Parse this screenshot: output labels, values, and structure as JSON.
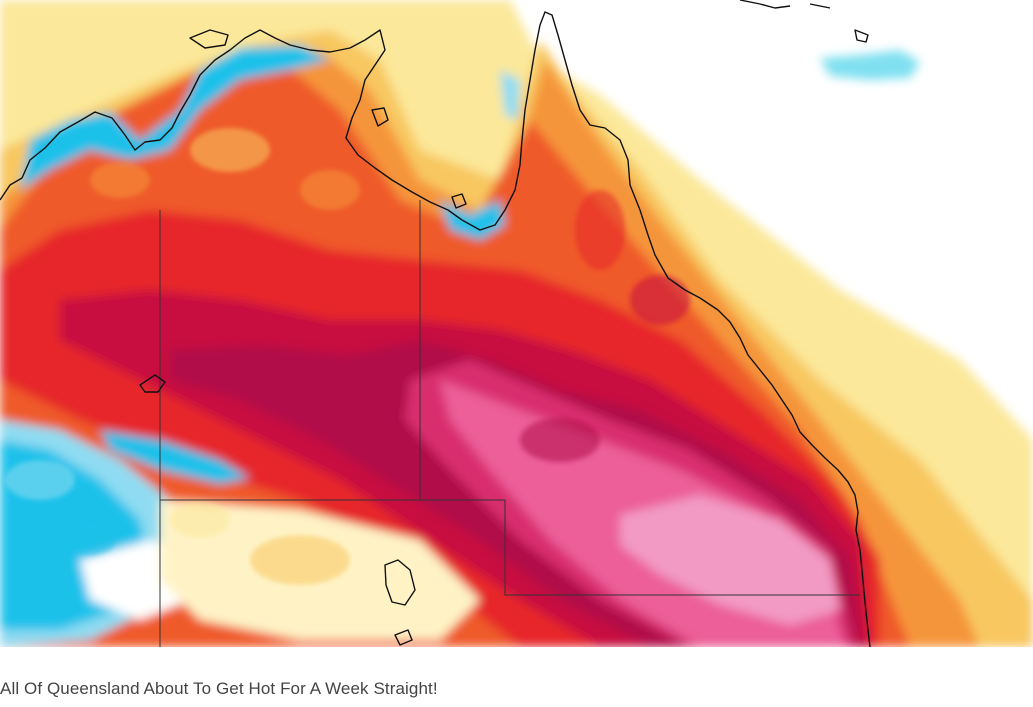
{
  "caption": "All Of Queensland About To Get Hot For A Week Straight!",
  "map": {
    "region": "Queensland, Australia",
    "subject": "temperature anomaly forecast",
    "colors": {
      "ocean_white": "#ffffff",
      "pale_yellow": "#fbe89a",
      "yellow_orange": "#f8c760",
      "orange": "#f5953a",
      "red_orange": "#ef5a2b",
      "red": "#e6282a",
      "crimson": "#c8103f",
      "dark_magenta": "#b10d4a",
      "deep_pink": "#d92e6e",
      "pink": "#ec5e99",
      "light_pink": "#f29ac4",
      "cyan": "#1ec1ea",
      "light_cyan": "#8fdcf2",
      "coastline": "#111111",
      "border": "#333333"
    }
  }
}
